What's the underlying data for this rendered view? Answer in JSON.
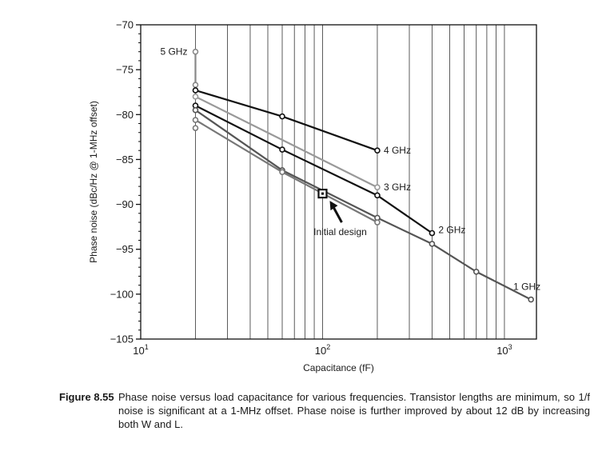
{
  "chart_data": {
    "type": "line",
    "title": "",
    "xlabel": "Capacitance (fF)",
    "ylabel": "Phase noise (dBc/Hz @ 1-MHz offset)",
    "xscale": "log",
    "xlim": [
      10,
      1500
    ],
    "ylim": [
      -105,
      -70
    ],
    "grid": "vertical",
    "x_ticks": [
      {
        "value": 10,
        "base": "10",
        "exp": "1"
      },
      {
        "value": 100,
        "base": "10",
        "exp": "2"
      },
      {
        "value": 1000,
        "base": "10",
        "exp": "3"
      }
    ],
    "y_ticks": [
      -70,
      -75,
      -80,
      -85,
      -90,
      -95,
      -100,
      -105
    ],
    "series": [
      {
        "name": "5 GHz",
        "color": "#888888",
        "points": [
          [
            20,
            -73.0
          ],
          [
            20,
            -76.7
          ]
        ]
      },
      {
        "name": "4 GHz",
        "color": "#111111",
        "points": [
          [
            20,
            -77.3
          ],
          [
            60,
            -80.2
          ],
          [
            200,
            -84.0
          ]
        ]
      },
      {
        "name": "3 GHz",
        "color": "#999999",
        "points": [
          [
            20,
            -78.0
          ],
          [
            200,
            -88.1
          ]
        ]
      },
      {
        "name": "2 GHz",
        "color": "#111111",
        "points": [
          [
            20,
            -79.0
          ],
          [
            60,
            -83.9
          ],
          [
            200,
            -89.0
          ],
          [
            400,
            -93.2
          ]
        ]
      },
      {
        "name": "1 GHz",
        "color": "#555555",
        "points": [
          [
            20,
            -79.5
          ],
          [
            60,
            -86.2
          ],
          [
            200,
            -91.5
          ],
          [
            400,
            -94.4
          ],
          [
            700,
            -97.5
          ],
          [
            1400,
            -100.6
          ]
        ]
      },
      {
        "name": "",
        "color": "#777777",
        "points": [
          [
            20,
            -80.6
          ],
          [
            60,
            -86.4
          ],
          [
            200,
            -92.0
          ]
        ]
      },
      {
        "name": "",
        "color": "#777777",
        "points": [
          [
            20,
            -81.5
          ]
        ]
      }
    ],
    "annotations": [
      {
        "text": "Initial design",
        "marker": {
          "x": 100,
          "y": -88.8
        }
      }
    ]
  },
  "caption": {
    "label": "Figure 8.55",
    "text": "Phase noise versus load capacitance for various frequencies. Transistor lengths are minimum, so 1/f noise is significant at a 1-MHz offset. Phase noise is further improved by about 12 dB by increasing both W and L."
  }
}
